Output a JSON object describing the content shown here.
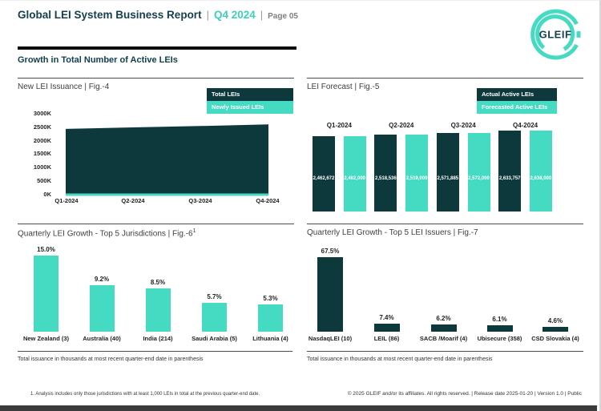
{
  "header": {
    "title": "Global LEI System Business Report",
    "separator": "|",
    "quarter": "Q4 2024",
    "page_label": "Page 05"
  },
  "logo_text": "GLEIF",
  "section_title": "Growth in Total Number of Active LEIs",
  "colors": {
    "brand_teal": "#45dbc2",
    "dark_teal": "#0e393c",
    "header_text": "#16404d",
    "quarter_teal": "#3ecfbb",
    "footer_bar": "#3b3b3b"
  },
  "chart_data": [
    {
      "id": "fig4",
      "type": "area",
      "title": "New LEI Issuance | Fig.-4",
      "legend": [
        {
          "label": "Total LEIs",
          "color": "dark"
        },
        {
          "label": "Newly Issued LEIs",
          "color": "teal"
        }
      ],
      "x": [
        "Q1-2024",
        "Q2-2024",
        "Q3-2024",
        "Q4-2024"
      ],
      "series": [
        {
          "name": "Total LEIs",
          "values": [
            2462672,
            2518536,
            2571885,
            2633757
          ]
        },
        {
          "name": "Newly Issued LEIs",
          "values": [
            85000,
            85000,
            85000,
            85000
          ]
        }
      ],
      "y_ticks": [
        "3000K",
        "2500K",
        "2000K",
        "1500K",
        "1000K",
        "500K",
        "0K"
      ],
      "ylim": [
        0,
        3000000
      ],
      "grid": false,
      "legend_position": "top-right"
    },
    {
      "id": "fig5",
      "type": "bar",
      "title": "LEI Forecast | Fig.-5",
      "legend": [
        {
          "label": "Actual Active LEIs",
          "color": "dark"
        },
        {
          "label": "Forecasted Active LEIs",
          "color": "teal"
        }
      ],
      "categories": [
        "Q1-2024",
        "Q2-2024",
        "Q3-2024",
        "Q4-2024"
      ],
      "series": [
        {
          "name": "Actual Active LEIs",
          "color": "dark",
          "values": [
            2462672,
            2518536,
            2571885,
            2633757
          ],
          "labels": [
            "2,462,672",
            "2,518,536",
            "2,571,885",
            "2,633,757"
          ]
        },
        {
          "name": "Forecasted Active LEIs",
          "color": "teal",
          "values": [
            2462000,
            2519000,
            2572000,
            2638000
          ],
          "labels": [
            "2,462,000",
            "2,519,000",
            "2,572,000",
            "2,638,000"
          ]
        }
      ],
      "legend_position": "top-right"
    },
    {
      "id": "fig6",
      "type": "bar",
      "title_main": "Quarterly LEI Growth - Top 5 Jurisdictions | Fig.-6",
      "title_sup": "1",
      "categories": [
        "New Zealand (3)",
        "Australia (40)",
        "India (214)",
        "Saudi Arabia (5)",
        "Lithuania (4)"
      ],
      "values": [
        15.0,
        9.2,
        8.5,
        5.7,
        5.3
      ],
      "value_labels": [
        "15.0%",
        "9.2%",
        "8.5%",
        "5.7%",
        "5.3%"
      ],
      "bar_color": "teal",
      "footnote": "Total issuance in thousands at most recent quarter-end date in parenthesis"
    },
    {
      "id": "fig7",
      "type": "bar",
      "title": "Quarterly LEI Growth - Top 5 LEI Issuers | Fig.-7",
      "categories": [
        "NasdaqLEI (10)",
        "LEIL (86)",
        "SACB /Moarif (4)",
        "Ubisecure (358)",
        "CSD Slovakia (4)"
      ],
      "values": [
        67.5,
        7.4,
        6.2,
        6.1,
        4.6
      ],
      "value_labels": [
        "67.5%",
        "7.4%",
        "6.2%",
        "6.1%",
        "4.6%"
      ],
      "bar_color": "dark",
      "footnote": "Total issuance in thousands at most recent quarter-end date in parenthesis"
    }
  ],
  "footer": {
    "footnote1": "1. Analysis includes only those jurisdictions with at least 1,000 LEIs in total at the previous quarter-end date.",
    "copyright": "© 2025 GLEIF and/or its affiliates. All rights reserved. | Release date 2025-01-20 | Version 1.0 | Public"
  }
}
